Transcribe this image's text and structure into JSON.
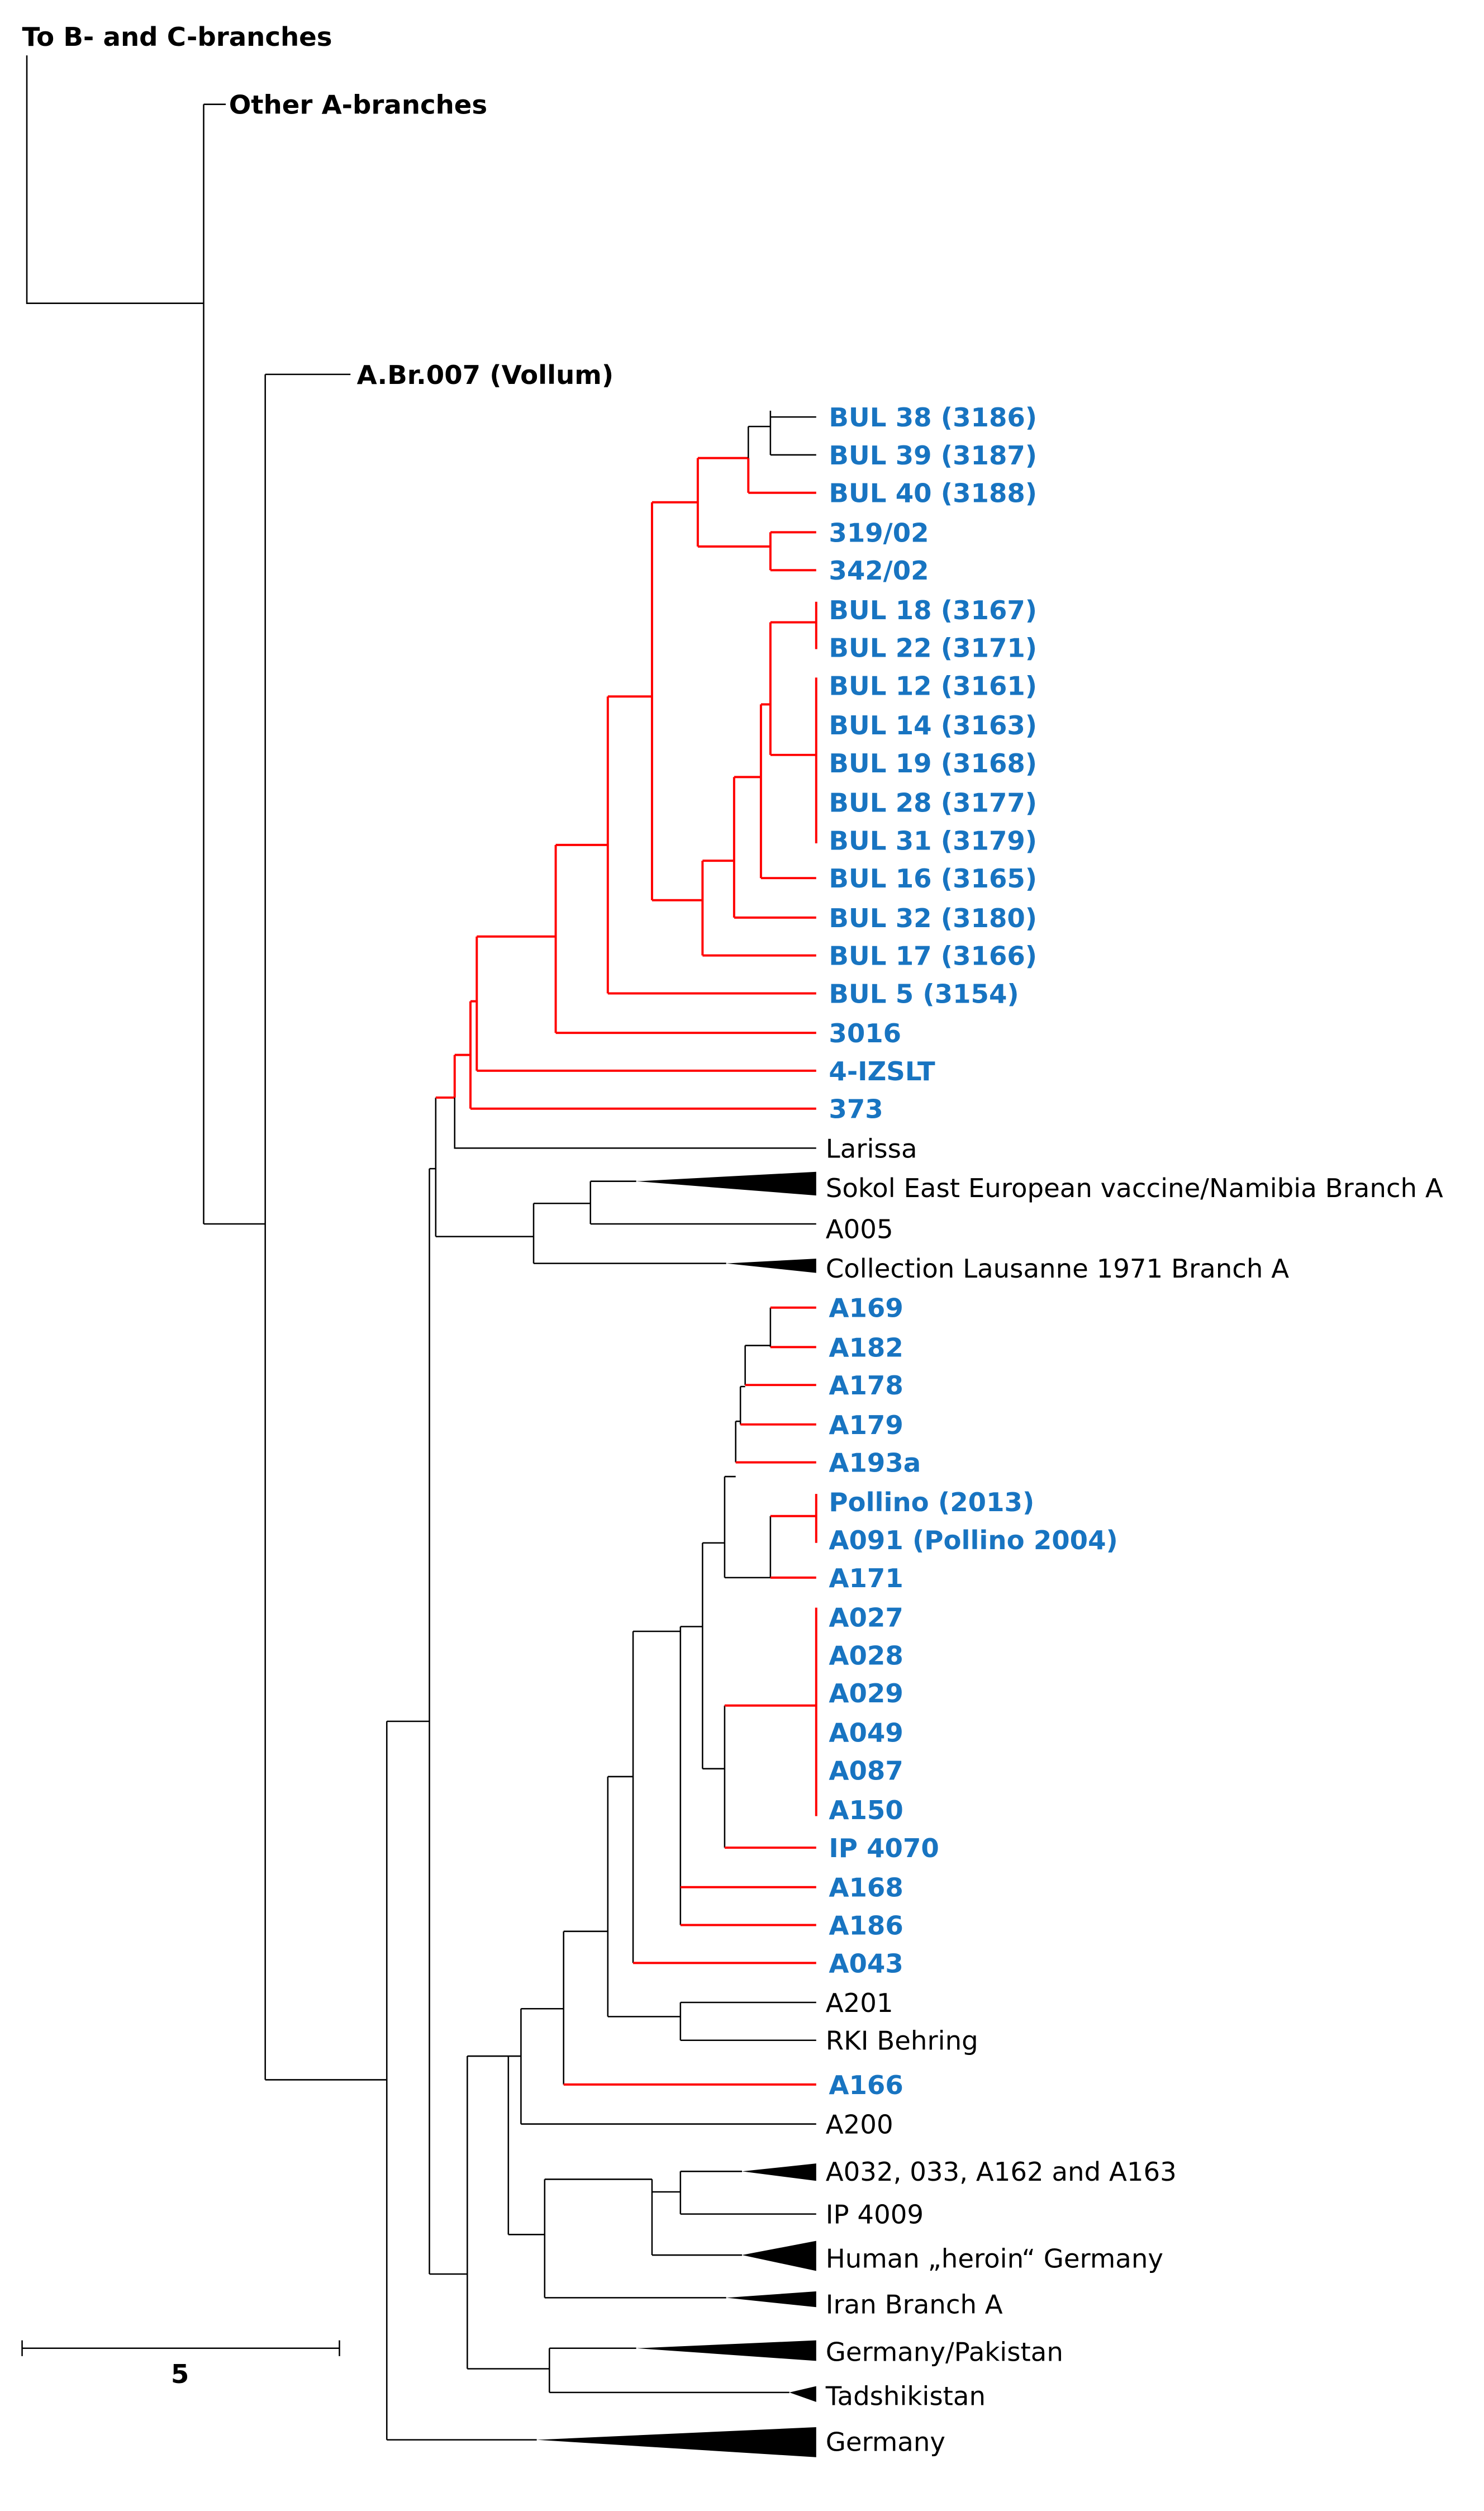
{
  "colors": {
    "highlight_label": "#1874c1",
    "highlight_branch": "#ff0000",
    "default": "#000000"
  },
  "header_labels": {
    "outgroup": "To B- and C-branches",
    "other_a": "Other A-branches",
    "vollum": "A.Br.007 (Vollum)"
  },
  "scale_bar": {
    "value": "5"
  },
  "leaves": [
    {
      "label": "BUL 38 (3186)",
      "highlight": true
    },
    {
      "label": "BUL 39 (3187)",
      "highlight": true
    },
    {
      "label": "BUL 40 (3188)",
      "highlight": true
    },
    {
      "label": "319/02",
      "highlight": true
    },
    {
      "label": "342/02",
      "highlight": true
    },
    {
      "label": "BUL 18 (3167)",
      "highlight": true
    },
    {
      "label": "BUL 22 (3171)",
      "highlight": true
    },
    {
      "label": "BUL 12 (3161)",
      "highlight": true
    },
    {
      "label": "BUL 14 (3163)",
      "highlight": true
    },
    {
      "label": "BUL 19 (3168)",
      "highlight": true
    },
    {
      "label": "BUL 28 (3177)",
      "highlight": true
    },
    {
      "label": "BUL 31 (3179)",
      "highlight": true
    },
    {
      "label": "BUL 16 (3165)",
      "highlight": true
    },
    {
      "label": "BUL 32 (3180)",
      "highlight": true
    },
    {
      "label": "BUL 17 (3166)",
      "highlight": true
    },
    {
      "label": "BUL 5 (3154)",
      "highlight": true
    },
    {
      "label": "3016",
      "highlight": true
    },
    {
      "label": "4-IZSLT",
      "highlight": true
    },
    {
      "label": "373",
      "highlight": true
    },
    {
      "label": "Larissa",
      "highlight": false
    },
    {
      "label": "Sokol East European vaccine/Namibia Branch A",
      "highlight": false,
      "collapsed": true
    },
    {
      "label": "A005",
      "highlight": false
    },
    {
      "label": "Collection Lausanne 1971 Branch A",
      "highlight": false,
      "collapsed": true
    },
    {
      "label": "A169",
      "highlight": true
    },
    {
      "label": "A182",
      "highlight": true
    },
    {
      "label": "A178",
      "highlight": true
    },
    {
      "label": "A179",
      "highlight": true
    },
    {
      "label": "A193a",
      "highlight": true
    },
    {
      "label": "Pollino (2013)",
      "highlight": true
    },
    {
      "label": "A091 (Pollino 2004)",
      "highlight": true
    },
    {
      "label": "A171",
      "highlight": true
    },
    {
      "label": "A027",
      "highlight": true
    },
    {
      "label": "A028",
      "highlight": true
    },
    {
      "label": "A029",
      "highlight": true
    },
    {
      "label": "A049",
      "highlight": true
    },
    {
      "label": "A087",
      "highlight": true
    },
    {
      "label": "A150",
      "highlight": true
    },
    {
      "label": "IP 4070",
      "highlight": true
    },
    {
      "label": "A168",
      "highlight": true
    },
    {
      "label": "A186",
      "highlight": true
    },
    {
      "label": "A043",
      "highlight": true
    },
    {
      "label": "A201",
      "highlight": false
    },
    {
      "label": "RKI Behring",
      "highlight": false
    },
    {
      "label": "A166",
      "highlight": true
    },
    {
      "label": "A200",
      "highlight": false
    },
    {
      "label": "A032, 033, A162 and A163",
      "highlight": false,
      "collapsed": true
    },
    {
      "label": "IP 4009",
      "highlight": false
    },
    {
      "label": "Human „heroin“ Germany",
      "highlight": false,
      "collapsed": true
    },
    {
      "label": "Iran Branch A",
      "highlight": false,
      "collapsed": true
    },
    {
      "label": "Germany/Pakistan",
      "highlight": false,
      "collapsed": true
    },
    {
      "label": "Tadshikistan",
      "highlight": false,
      "collapsed": true
    },
    {
      "label": "Germany",
      "highlight": false,
      "collapsed": true
    }
  ]
}
